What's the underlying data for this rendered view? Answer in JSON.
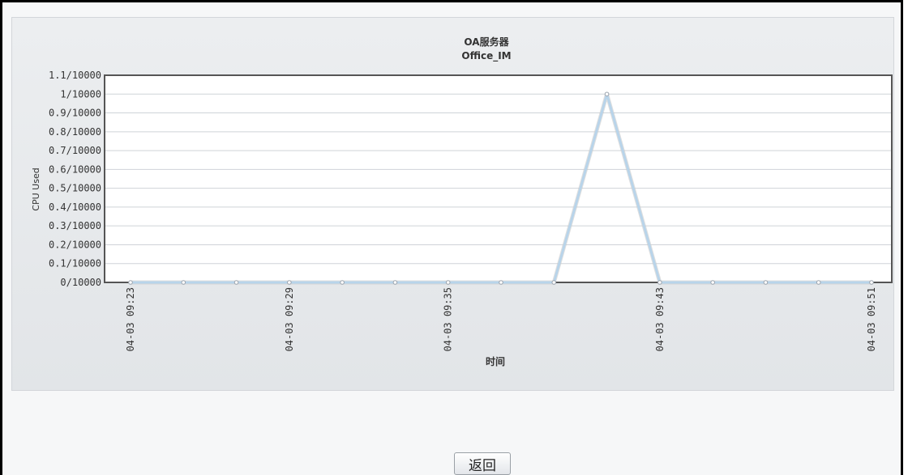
{
  "chart_data": {
    "type": "line",
    "title": "OA服务器",
    "subtitle": "Office_IM",
    "xlabel": "时间",
    "ylabel": "CPU Used",
    "y_tick_labels": [
      "0/10000",
      "0.1/10000",
      "0.2/10000",
      "0.3/10000",
      "0.4/10000",
      "0.5/10000",
      "0.6/10000",
      "0.7/10000",
      "0.8/10000",
      "0.9/10000",
      "1/10000",
      "1.1/10000"
    ],
    "ylim": [
      0,
      1.1
    ],
    "x_tick_labels": [
      {
        "index": 0,
        "label": "04-03 09:23"
      },
      {
        "index": 3,
        "label": "04-03 09:29"
      },
      {
        "index": 6,
        "label": "04-03 09:35"
      },
      {
        "index": 10,
        "label": "04-03 09:43"
      },
      {
        "index": 14,
        "label": "04-03 09:51"
      }
    ],
    "point_count": 15,
    "series": [
      {
        "values": [
          0,
          0,
          0,
          0,
          0,
          0,
          0,
          0,
          0,
          1,
          0,
          0,
          0,
          0,
          0
        ]
      }
    ],
    "grid": true,
    "line_color": "#b8d4ea",
    "marker_color": "#9aa3ad"
  },
  "footer": {
    "back_label": "返回"
  }
}
